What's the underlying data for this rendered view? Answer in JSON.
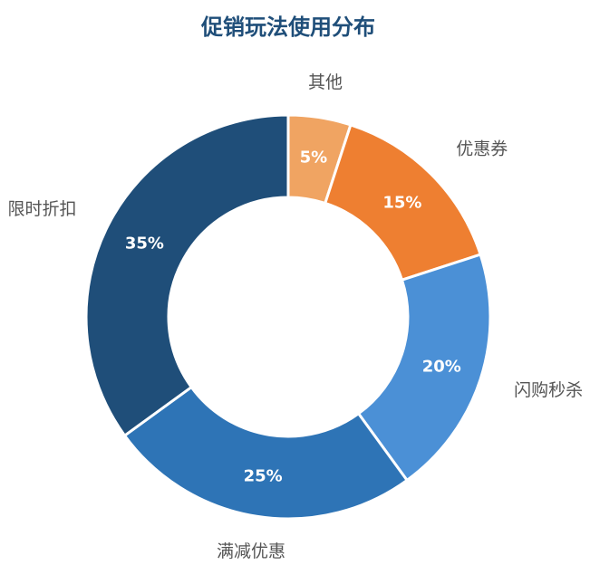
{
  "chart_data": {
    "type": "pie",
    "title": "促销玩法使用分布",
    "categories": [
      "其他",
      "优惠券",
      "闪购秒杀",
      "满减优惠",
      "限时折扣"
    ],
    "values": [
      5,
      15,
      20,
      25,
      35
    ],
    "value_labels": [
      "5%",
      "15%",
      "20%",
      "25%",
      "35%"
    ],
    "colors": [
      "#f0a462",
      "#ee7f31",
      "#4b90d6",
      "#2e74b6",
      "#1f4e79"
    ],
    "donut": true,
    "legend": "none"
  }
}
